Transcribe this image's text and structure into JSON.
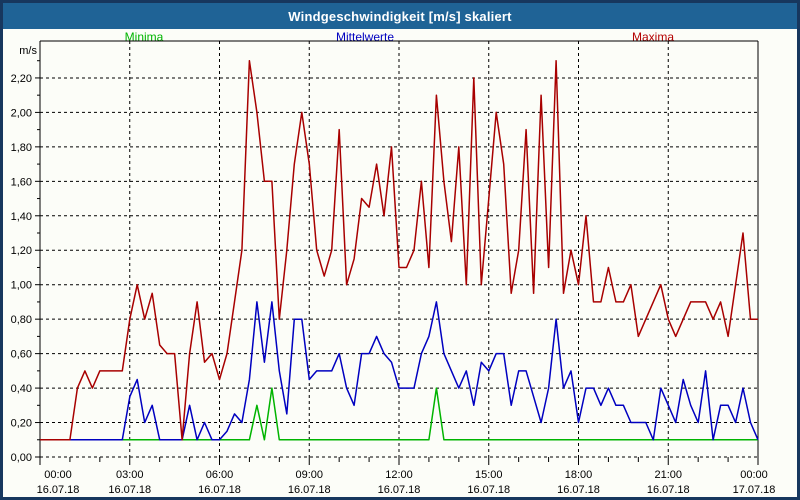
{
  "window": {
    "title": "Windgeschwindigkeit [m/s] skaliert"
  },
  "legend": {
    "minima": "Minima",
    "mittelwerte": "Mittelwerte",
    "maxima": "Maxima"
  },
  "colors": {
    "titlebar_bg": "#1F6396",
    "titlebar_text": "#FFFFFF",
    "frame_border": "#17375E",
    "background": "#FCFDF8",
    "axis": "#000000",
    "minima": "#00B400",
    "mittelwerte": "#0000C0",
    "maxima": "#A80000"
  },
  "y_axis": {
    "unit": "m/s",
    "tick_values": [
      0,
      0.2,
      0.4,
      0.6,
      0.8,
      1.0,
      1.2,
      1.4,
      1.6,
      1.8,
      2.0,
      2.2
    ],
    "tick_labels": [
      "0,00",
      "0,20",
      "0,40",
      "0,60",
      "0,80",
      "1,00",
      "1,20",
      "1,40",
      "1,60",
      "1,80",
      "2,00",
      "2,20"
    ]
  },
  "x_axis": {
    "minor_tick_hours": 1,
    "ticks": [
      {
        "hour": 0,
        "time": "00:00",
        "date": "16.07.18"
      },
      {
        "hour": 3,
        "time": "03:00",
        "date": "16.07.18"
      },
      {
        "hour": 6,
        "time": "06:00",
        "date": "16.07.18"
      },
      {
        "hour": 9,
        "time": "09:00",
        "date": "16.07.18"
      },
      {
        "hour": 12,
        "time": "12:00",
        "date": "16.07.18"
      },
      {
        "hour": 15,
        "time": "15:00",
        "date": "16.07.18"
      },
      {
        "hour": 18,
        "time": "18:00",
        "date": "16.07.18"
      },
      {
        "hour": 21,
        "time": "21:00",
        "date": "16.07.18"
      },
      {
        "hour": 24,
        "time": "00:00",
        "date": "17.07.18"
      }
    ]
  },
  "chart_data": {
    "type": "line",
    "title": "Windgeschwindigkeit [m/s] skaliert",
    "xlabel": "",
    "ylabel": "m/s",
    "x_start_hour": 0,
    "x_end_hour": 24,
    "sample_interval_minutes": 15,
    "ylim": [
      0,
      2.41
    ],
    "grid": "dashed",
    "series": [
      {
        "name": "Minima",
        "color": "#00B400",
        "values": [
          0.1,
          0.1,
          0.1,
          0.1,
          0.1,
          0.1,
          0.1,
          0.1,
          0.1,
          0.1,
          0.1,
          0.1,
          0.1,
          0.1,
          0.1,
          0.1,
          0.1,
          0.1,
          0.1,
          0.1,
          0.1,
          0.1,
          0.1,
          0.1,
          0.1,
          0.1,
          0.1,
          0.1,
          0.1,
          0.3,
          0.1,
          0.4,
          0.1,
          0.1,
          0.1,
          0.1,
          0.1,
          0.1,
          0.1,
          0.1,
          0.1,
          0.1,
          0.1,
          0.1,
          0.1,
          0.1,
          0.1,
          0.1,
          0.1,
          0.1,
          0.1,
          0.1,
          0.1,
          0.4,
          0.1,
          0.1,
          0.1,
          0.1,
          0.1,
          0.1,
          0.1,
          0.1,
          0.1,
          0.1,
          0.1,
          0.1,
          0.1,
          0.1,
          0.1,
          0.1,
          0.1,
          0.1,
          0.1,
          0.1,
          0.1,
          0.1,
          0.1,
          0.1,
          0.1,
          0.1,
          0.1,
          0.1,
          0.1,
          0.1,
          0.1,
          0.1,
          0.1,
          0.1,
          0.1,
          0.1,
          0.1,
          0.1,
          0.1,
          0.1,
          0.1,
          0.1,
          0.1
        ]
      },
      {
        "name": "Mittelwerte",
        "color": "#0000C0",
        "values": [
          0.1,
          0.1,
          0.1,
          0.1,
          0.1,
          0.1,
          0.1,
          0.1,
          0.1,
          0.1,
          0.1,
          0.1,
          0.35,
          0.45,
          0.2,
          0.3,
          0.1,
          0.1,
          0.1,
          0.1,
          0.3,
          0.1,
          0.2,
          0.1,
          0.1,
          0.15,
          0.25,
          0.2,
          0.45,
          0.9,
          0.55,
          0.9,
          0.5,
          0.25,
          0.8,
          0.8,
          0.45,
          0.5,
          0.5,
          0.5,
          0.6,
          0.4,
          0.3,
          0.6,
          0.6,
          0.7,
          0.6,
          0.55,
          0.4,
          0.4,
          0.4,
          0.6,
          0.7,
          0.9,
          0.6,
          0.5,
          0.4,
          0.5,
          0.3,
          0.55,
          0.5,
          0.6,
          0.6,
          0.3,
          0.5,
          0.5,
          0.35,
          0.2,
          0.4,
          0.8,
          0.4,
          0.5,
          0.2,
          0.4,
          0.4,
          0.3,
          0.4,
          0.3,
          0.3,
          0.2,
          0.2,
          0.2,
          0.1,
          0.4,
          0.3,
          0.2,
          0.45,
          0.3,
          0.2,
          0.5,
          0.1,
          0.3,
          0.3,
          0.2,
          0.4,
          0.2,
          0.1
        ]
      },
      {
        "name": "Maxima",
        "color": "#A80000",
        "values": [
          0.1,
          0.1,
          0.1,
          0.1,
          0.1,
          0.4,
          0.5,
          0.4,
          0.5,
          0.5,
          0.5,
          0.5,
          0.8,
          1.0,
          0.8,
          0.95,
          0.65,
          0.6,
          0.6,
          0.1,
          0.6,
          0.9,
          0.55,
          0.6,
          0.45,
          0.6,
          0.9,
          1.2,
          2.3,
          2.0,
          1.6,
          1.6,
          0.8,
          1.2,
          1.7,
          2.0,
          1.7,
          1.2,
          1.05,
          1.2,
          1.9,
          1.0,
          1.15,
          1.5,
          1.45,
          1.7,
          1.4,
          1.8,
          1.1,
          1.1,
          1.2,
          1.6,
          1.1,
          2.1,
          1.6,
          1.25,
          1.8,
          1.0,
          2.2,
          1.0,
          1.5,
          2.0,
          1.7,
          0.95,
          1.2,
          1.9,
          0.95,
          2.1,
          1.1,
          2.3,
          0.95,
          1.2,
          1.0,
          1.4,
          0.9,
          0.9,
          1.1,
          0.9,
          0.9,
          1.0,
          0.7,
          0.8,
          0.9,
          1.0,
          0.8,
          0.7,
          0.8,
          0.9,
          0.9,
          0.9,
          0.8,
          0.9,
          0.7,
          1.0,
          1.3,
          0.8,
          0.8
        ]
      }
    ]
  }
}
